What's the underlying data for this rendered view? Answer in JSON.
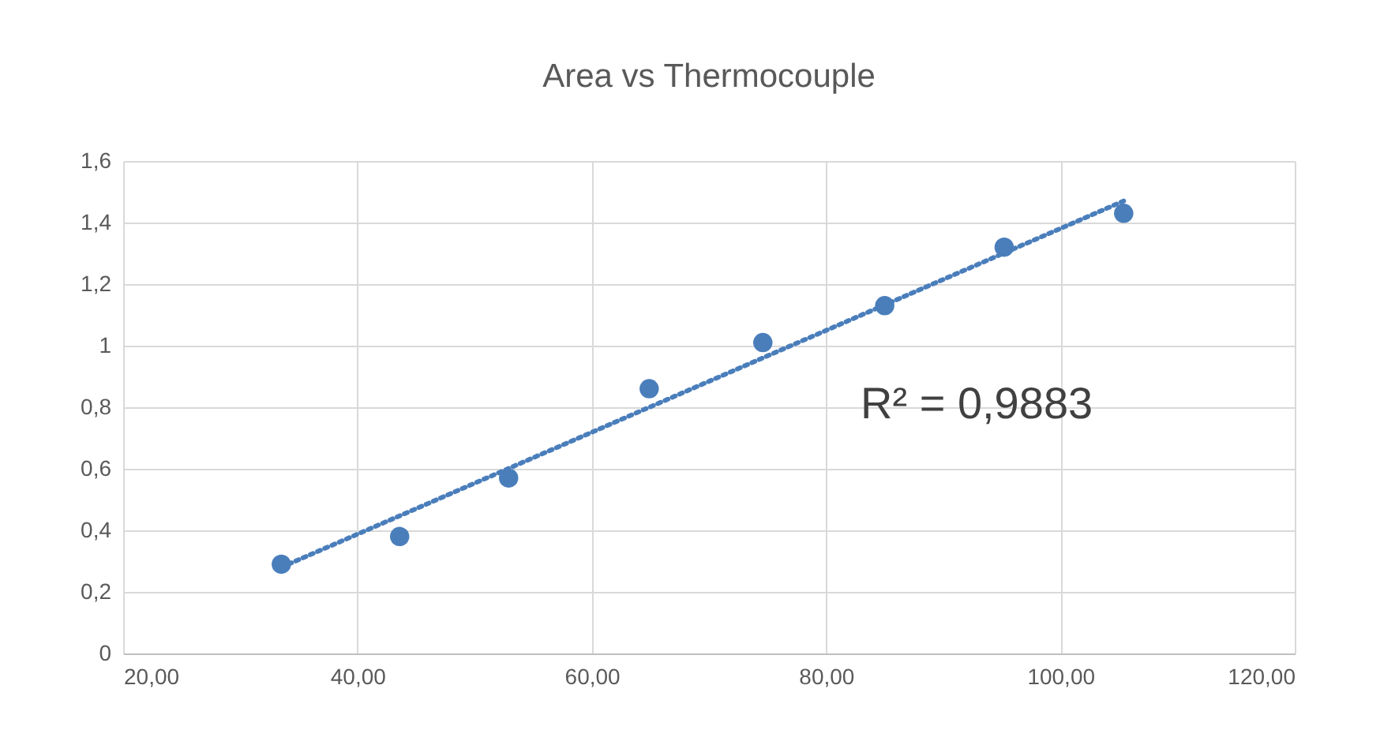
{
  "chart_data": {
    "type": "scatter",
    "title": "Area vs Thermocouple",
    "series": [
      {
        "type": "scatter",
        "color": "#4a7ebb",
        "marker": "circle",
        "x": [
          33.5,
          43.6,
          52.9,
          64.9,
          74.6,
          85.0,
          95.2,
          105.4
        ],
        "values": [
          0.29,
          0.38,
          0.57,
          0.86,
          1.01,
          1.13,
          1.32,
          1.43
        ]
      },
      {
        "type": "line",
        "color": "#4a7ebb",
        "line_style": "dotted",
        "x": [
          33.5,
          105.4
        ],
        "values": [
          0.28,
          1.47
        ]
      }
    ],
    "xlim": [
      20,
      120
    ],
    "xticks": [
      {
        "value": 20,
        "label": "20,00"
      },
      {
        "value": 40,
        "label": "40,00"
      },
      {
        "value": 60,
        "label": "60,00"
      },
      {
        "value": 80,
        "label": "80,00"
      },
      {
        "value": 100,
        "label": "100,00"
      },
      {
        "value": 120,
        "label": "120,00"
      }
    ],
    "ylim": [
      0,
      1.6
    ],
    "yticks": [
      {
        "value": 0,
        "label": "0"
      },
      {
        "value": 0.2,
        "label": "0,2"
      },
      {
        "value": 0.4,
        "label": "0,4"
      },
      {
        "value": 0.6,
        "label": "0,6"
      },
      {
        "value": 0.8,
        "label": "0,8"
      },
      1,
      {
        "value": 1.2,
        "label": "1,2"
      },
      {
        "value": 1.4,
        "label": "1,4"
      },
      {
        "value": 1.6,
        "label": "1,6"
      }
    ],
    "annotations": [
      "R² = 0,9883"
    ],
    "grid": true
  }
}
